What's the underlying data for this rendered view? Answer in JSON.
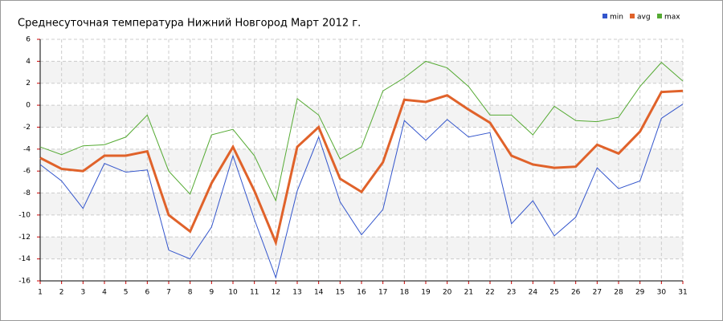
{
  "chart_data": {
    "type": "line",
    "title": "Среднесуточная температура Нижний Новгород  Март 2012 г.",
    "x": [
      1,
      2,
      3,
      4,
      5,
      6,
      7,
      8,
      9,
      10,
      11,
      12,
      13,
      14,
      15,
      16,
      17,
      18,
      19,
      20,
      21,
      22,
      23,
      24,
      25,
      26,
      27,
      28,
      29,
      30,
      31
    ],
    "xlim": [
      1,
      31
    ],
    "xticks": [
      1,
      2,
      3,
      4,
      5,
      6,
      7,
      8,
      9,
      10,
      11,
      12,
      13,
      14,
      15,
      16,
      17,
      18,
      19,
      20,
      21,
      22,
      23,
      24,
      25,
      26,
      27,
      28,
      29,
      30,
      31
    ],
    "ylim": [
      -16,
      6
    ],
    "yticks": [
      -16,
      -14,
      -12,
      -10,
      -8,
      -6,
      -4,
      -2,
      0,
      2,
      4,
      6
    ],
    "grid": true,
    "legend": "top-right",
    "series": [
      {
        "name": "min",
        "color": "#3355cc",
        "values": [
          -5.4,
          -6.9,
          -9.4,
          -5.3,
          -6.1,
          -5.9,
          -13.2,
          -14.0,
          -11.1,
          -4.6,
          -10.4,
          -15.7,
          -7.8,
          -2.9,
          -8.8,
          -11.8,
          -9.5,
          -1.4,
          -3.2,
          -1.3,
          -2.9,
          -2.5,
          -10.8,
          -8.7,
          -11.9,
          -10.2,
          -5.7,
          -7.6,
          -6.9,
          -1.2,
          0.1
        ]
      },
      {
        "name": "avg",
        "color": "#e0622a",
        "values": [
          -4.8,
          -5.8,
          -6.0,
          -4.6,
          -4.6,
          -4.2,
          -10.0,
          -11.5,
          -7.1,
          -3.8,
          -7.8,
          -12.5,
          -3.8,
          -2.0,
          -6.7,
          -7.9,
          -5.2,
          0.5,
          0.3,
          0.9,
          -0.4,
          -1.6,
          -4.6,
          -5.4,
          -5.7,
          -5.6,
          -3.6,
          -4.4,
          -2.4,
          1.2,
          1.3
        ]
      },
      {
        "name": "max",
        "color": "#55aa33",
        "values": [
          -3.8,
          -4.5,
          -3.7,
          -3.6,
          -2.9,
          -0.9,
          -6.0,
          -8.1,
          -2.7,
          -2.2,
          -4.6,
          -8.7,
          0.6,
          -0.9,
          -4.9,
          -3.8,
          1.3,
          2.5,
          4.0,
          3.4,
          1.7,
          -0.9,
          -0.9,
          -2.7,
          -0.1,
          -1.4,
          -1.5,
          -1.1,
          1.7,
          3.9,
          2.2
        ]
      }
    ]
  }
}
